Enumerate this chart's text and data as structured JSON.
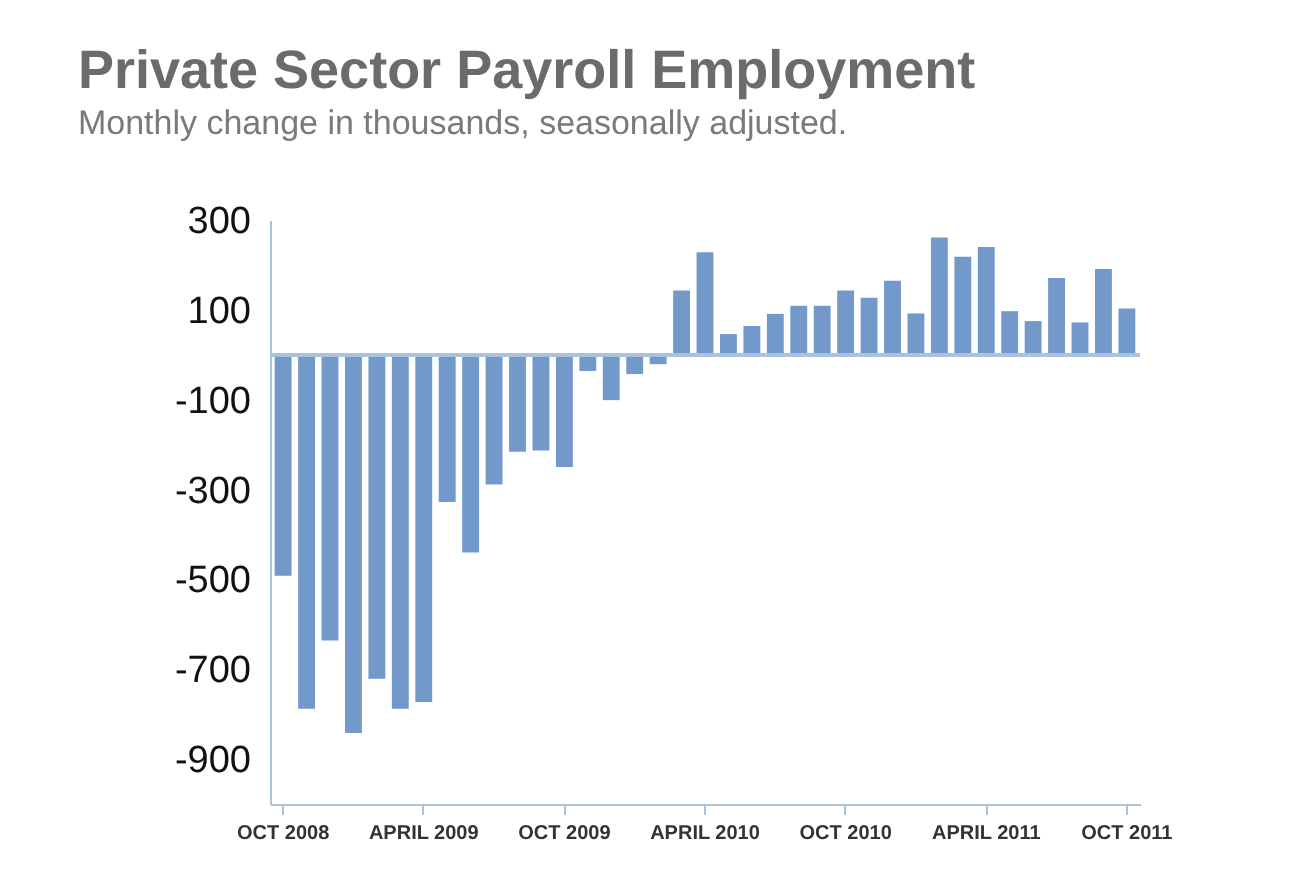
{
  "chart_data": {
    "type": "bar",
    "title": "Private Sector Payroll Employment",
    "subtitle": "Monthly change in thousands, seasonally adjusted.",
    "categories": [
      "OCT 2008",
      null,
      null,
      null,
      null,
      null,
      "APRIL 2009",
      null,
      null,
      null,
      null,
      null,
      "OCT 2009",
      null,
      null,
      null,
      null,
      null,
      "APRIL 2010",
      null,
      null,
      null,
      null,
      null,
      "OCT 2010",
      null,
      null,
      null,
      null,
      null,
      "APRIL 2011",
      null,
      null,
      null,
      null,
      null,
      "OCT 2011"
    ],
    "values": [
      -492,
      -788,
      -636,
      -842,
      -721,
      -788,
      -773,
      -328,
      -440,
      -289,
      -216,
      -213,
      -250,
      -36,
      -101,
      -43,
      -21,
      143,
      228,
      46,
      64,
      91,
      109,
      109,
      143,
      127,
      165,
      92,
      261,
      218,
      240,
      97,
      75,
      171,
      72,
      191,
      103
    ],
    "color": "#7299c9",
    "ylim": [
      -1000,
      300
    ],
    "yticks": [
      300,
      100,
      -100,
      -300,
      -500,
      -700,
      -900
    ],
    "ref_lines": [
      {
        "axis": "y",
        "value": 0,
        "color": "#a9c3df"
      }
    ],
    "grid": false
  }
}
